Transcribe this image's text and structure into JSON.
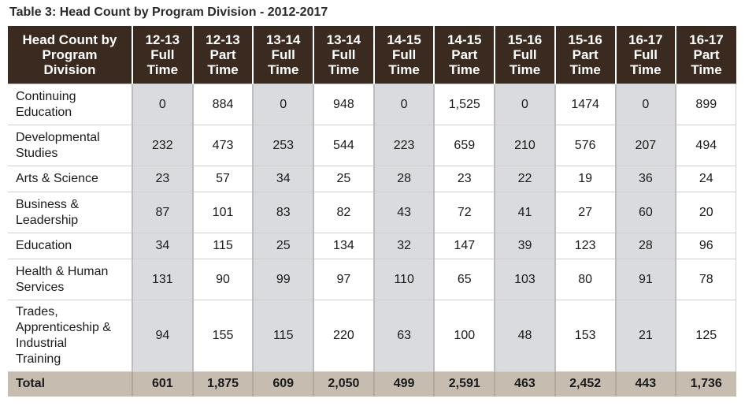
{
  "caption": "Table 3: Head Count by Program Division - 2012-2017",
  "columns": [
    [
      "Head Count by",
      "Program",
      "Division"
    ],
    [
      "12-13",
      "Full",
      "Time"
    ],
    [
      "12-13",
      "Part",
      "Time"
    ],
    [
      "13-14",
      "Full",
      "Time"
    ],
    [
      "13-14",
      "Full",
      "Time"
    ],
    [
      "14-15",
      "Full",
      "Time"
    ],
    [
      "14-15",
      "Part",
      "Time"
    ],
    [
      "15-16",
      "Full",
      "Time"
    ],
    [
      "15-16",
      "Part",
      "Time"
    ],
    [
      "16-17",
      "Full",
      "Time"
    ],
    [
      "16-17",
      "Part",
      "Time"
    ]
  ],
  "rows": [
    {
      "label": [
        "Continuing",
        "Education"
      ],
      "values": [
        "0",
        "884",
        "0",
        "948",
        "0",
        "1,525",
        "0",
        "1474",
        "0",
        "899"
      ]
    },
    {
      "label": [
        "Developmental",
        "Studies"
      ],
      "values": [
        "232",
        "473",
        "253",
        "544",
        "223",
        "659",
        "210",
        "576",
        "207",
        "494"
      ]
    },
    {
      "label": [
        "Arts & Science"
      ],
      "values": [
        "23",
        "57",
        "34",
        "25",
        "28",
        "23",
        "22",
        "19",
        "36",
        "24"
      ]
    },
    {
      "label": [
        "Business &",
        "Leadership"
      ],
      "values": [
        "87",
        "101",
        "83",
        "82",
        "43",
        "72",
        "41",
        "27",
        "60",
        "20"
      ]
    },
    {
      "label": [
        "Education"
      ],
      "values": [
        "34",
        "115",
        "25",
        "134",
        "32",
        "147",
        "39",
        "123",
        "28",
        "96"
      ]
    },
    {
      "label": [
        "Health & Human",
        "Services"
      ],
      "values": [
        "131",
        "90",
        "99",
        "97",
        "110",
        "65",
        "103",
        "80",
        "91",
        "78"
      ]
    },
    {
      "label": [
        "Trades,",
        "Apprenticeship &",
        "Industrial",
        "Training"
      ],
      "values": [
        "94",
        "155",
        "115",
        "220",
        "63",
        "100",
        "48",
        "153",
        "21",
        "125"
      ]
    }
  ],
  "total": {
    "label": "Total",
    "values": [
      "601",
      "1,875",
      "609",
      "2,050",
      "499",
      "2,591",
      "463",
      "2,452",
      "443",
      "1,736"
    ]
  }
}
